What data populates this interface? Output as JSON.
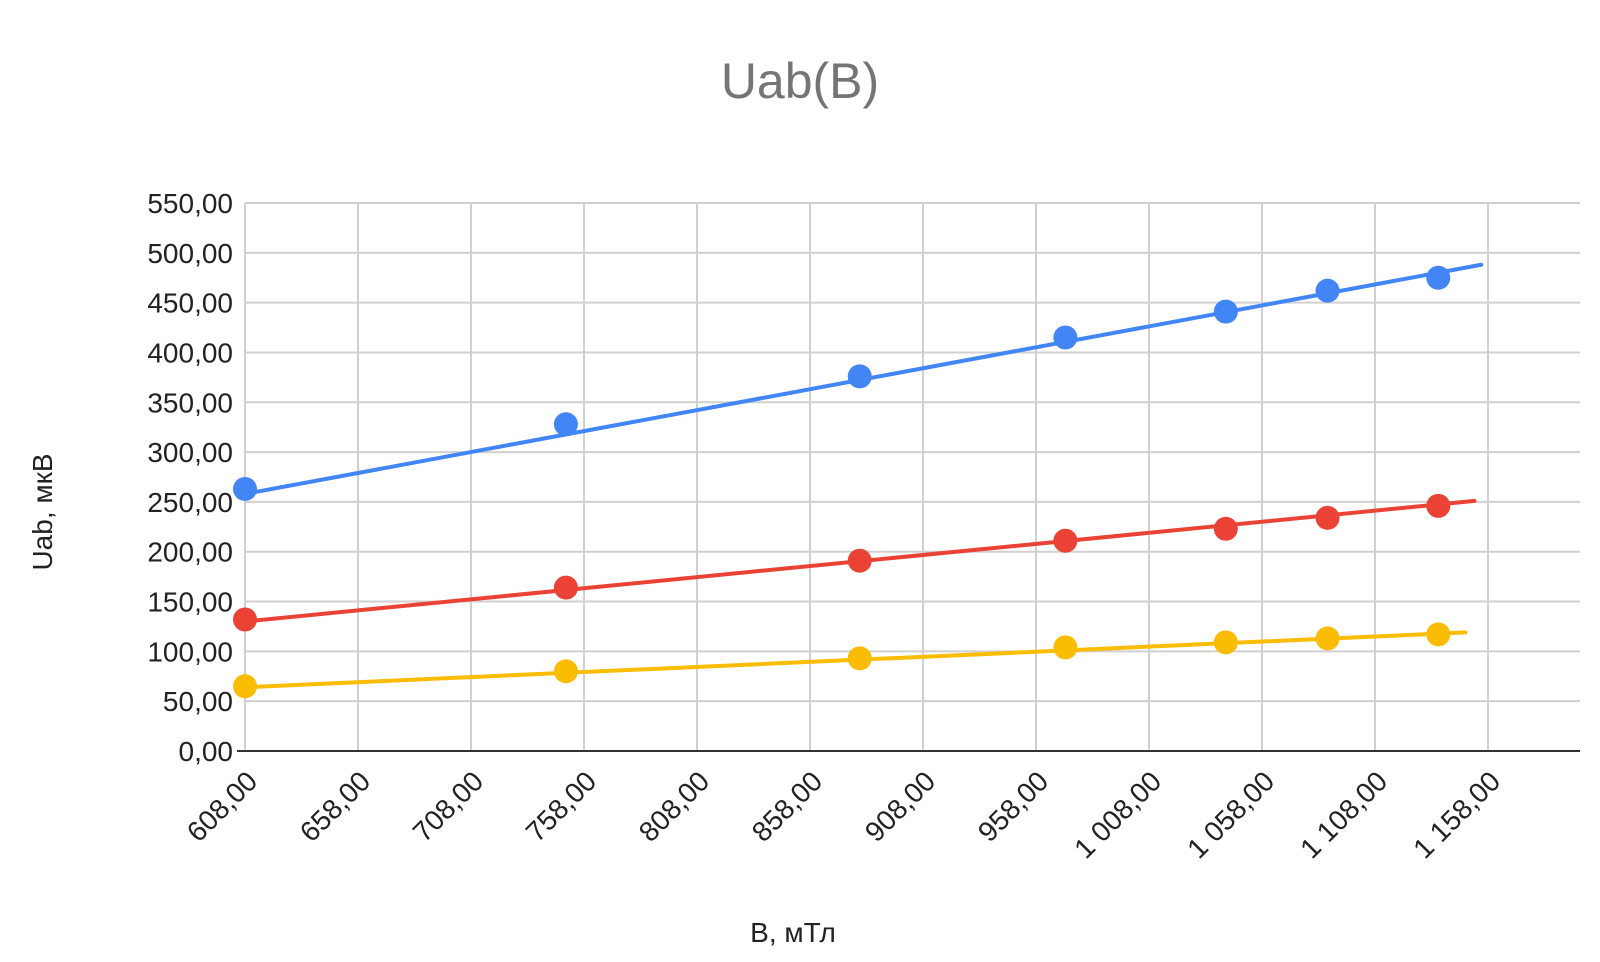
{
  "chart_data": {
    "type": "scatter",
    "title": "Uab(B)",
    "xlabel": "B, мТл",
    "ylabel": "Uab, мкВ",
    "xlim": [
      608,
      1208
    ],
    "ylim": [
      0,
      550
    ],
    "x_ticks": [
      608,
      658,
      708,
      758,
      808,
      858,
      908,
      958,
      1008,
      1058,
      1108,
      1158
    ],
    "x_tick_labels": [
      "608,00",
      "658,00",
      "708,00",
      "758,00",
      "808,00",
      "858,00",
      "908,00",
      "958,00",
      "1 008,00",
      "1 058,00",
      "1 108,00",
      "1 158,00"
    ],
    "y_ticks": [
      0,
      50,
      100,
      150,
      200,
      250,
      300,
      350,
      400,
      450,
      500,
      550
    ],
    "y_tick_labels": [
      "0,00",
      "50,00",
      "100,00",
      "150,00",
      "200,00",
      "250,00",
      "300,00",
      "350,00",
      "400,00",
      "450,00",
      "500,00",
      "550,00"
    ],
    "grid": true,
    "legend": "none",
    "series": [
      {
        "color": "#4285F4",
        "x": [
          608,
          750,
          880,
          971,
          1042,
          1087,
          1136
        ],
        "y": [
          263,
          328,
          376,
          415,
          441,
          462,
          475
        ],
        "trendline": {
          "x": [
            608,
            1155
          ],
          "y": [
            258,
            488
          ]
        }
      },
      {
        "color": "#EA4335",
        "x": [
          608,
          750,
          880,
          971,
          1042,
          1087,
          1136
        ],
        "y": [
          132,
          164,
          191,
          211,
          223,
          234,
          246
        ],
        "trendline": {
          "x": [
            608,
            1152
          ],
          "y": [
            130,
            251
          ]
        }
      },
      {
        "color": "#FBBC04",
        "x": [
          608,
          750,
          880,
          971,
          1042,
          1087,
          1136
        ],
        "y": [
          65,
          80,
          93,
          104,
          109,
          113,
          117
        ],
        "trendline": {
          "x": [
            608,
            1148
          ],
          "y": [
            64,
            119
          ]
        }
      }
    ]
  }
}
